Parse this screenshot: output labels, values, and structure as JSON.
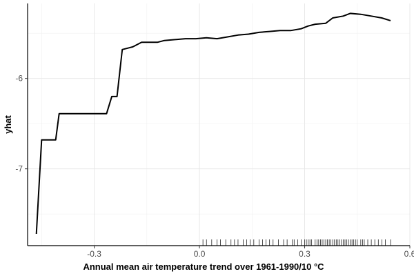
{
  "chart_data": {
    "type": "line",
    "title": "",
    "xlabel": "Annual mean air temperature trend over 1961-1990/10 °C",
    "ylabel": "yhat",
    "xlim": [
      -0.49,
      0.6
    ],
    "ylim": [
      -7.85,
      -5.17
    ],
    "x_ticks": [
      -0.3,
      0.0,
      0.3,
      0.6
    ],
    "x_tick_labels": [
      "-0.3",
      "0.0",
      "0.3",
      "0.6"
    ],
    "y_ticks": [
      -7,
      -6
    ],
    "y_tick_labels": [
      "-7",
      "-6"
    ],
    "grid": true,
    "legend": "none",
    "line_color": "#000000",
    "series": [
      {
        "x": [
          -0.465,
          -0.45,
          -0.43,
          -0.41,
          -0.4,
          -0.37,
          -0.34,
          -0.31,
          -0.28,
          -0.265,
          -0.25,
          -0.235,
          -0.22,
          -0.2,
          -0.19,
          -0.165,
          -0.15,
          -0.12,
          -0.1,
          -0.07,
          -0.04,
          -0.01,
          0.02,
          0.05,
          0.08,
          0.11,
          0.14,
          0.17,
          0.2,
          0.23,
          0.26,
          0.29,
          0.31,
          0.33,
          0.36,
          0.38,
          0.41,
          0.43,
          0.46,
          0.49,
          0.52,
          0.545
        ],
        "values": [
          -7.72,
          -6.68,
          -6.68,
          -6.68,
          -6.39,
          -6.39,
          -6.39,
          -6.39,
          -6.39,
          -6.39,
          -6.2,
          -6.2,
          -5.68,
          -5.66,
          -5.65,
          -5.6,
          -5.6,
          -5.6,
          -5.58,
          -5.57,
          -5.56,
          -5.56,
          -5.55,
          -5.56,
          -5.54,
          -5.52,
          -5.51,
          -5.49,
          -5.48,
          -5.47,
          -5.47,
          -5.45,
          -5.42,
          -5.4,
          -5.39,
          -5.33,
          -5.31,
          -5.28,
          -5.29,
          -5.31,
          -5.33,
          -5.36
        ]
      }
    ],
    "rug_x": [
      0.01,
      0.02,
      0.035,
      0.05,
      0.06,
      0.075,
      0.09,
      0.1,
      0.11,
      0.125,
      0.135,
      0.145,
      0.155,
      0.17,
      0.18,
      0.19,
      0.2,
      0.21,
      0.225,
      0.24,
      0.25,
      0.265,
      0.27,
      0.28,
      0.29,
      0.3,
      0.305,
      0.31,
      0.315,
      0.32,
      0.33,
      0.335,
      0.34,
      0.345,
      0.35,
      0.355,
      0.36,
      0.365,
      0.37,
      0.375,
      0.38,
      0.385,
      0.39,
      0.395,
      0.4,
      0.405,
      0.41,
      0.415,
      0.42,
      0.425,
      0.43,
      0.435,
      0.44,
      0.445,
      0.45,
      0.46,
      0.465,
      0.47,
      0.48,
      0.49,
      0.5,
      0.51,
      0.52,
      0.53,
      0.545
    ]
  }
}
